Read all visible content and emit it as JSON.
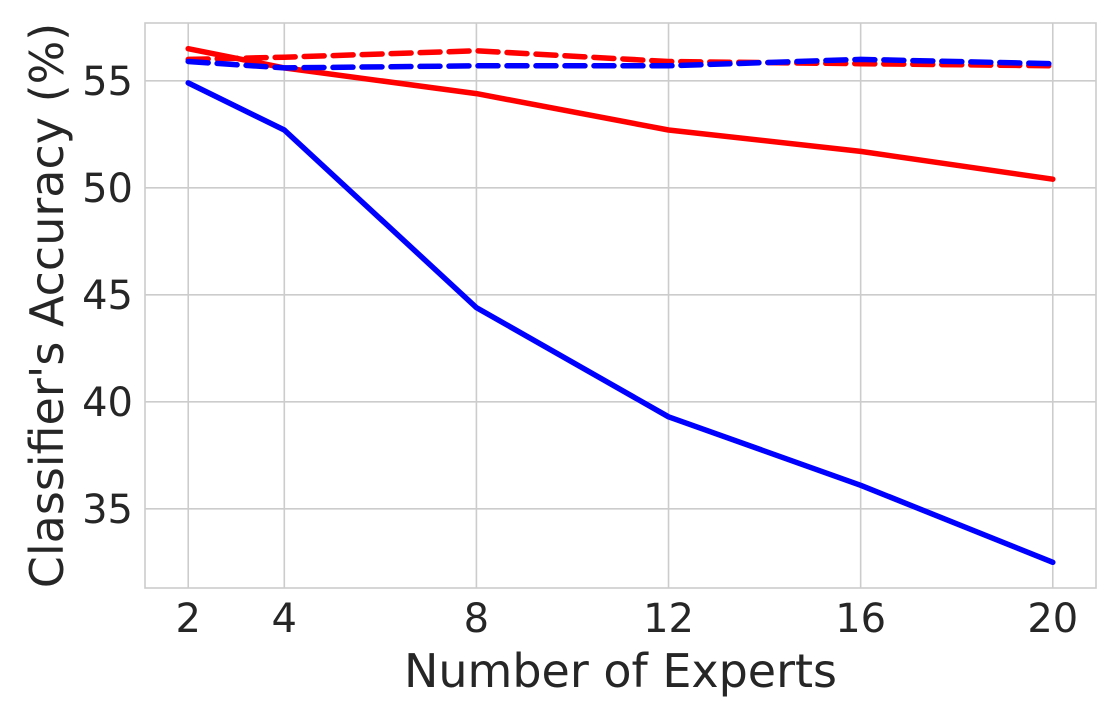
{
  "chart_data": {
    "type": "line",
    "title": "",
    "xlabel": "Number of Experts",
    "ylabel": "Classifier's Accuracy (%)",
    "x": [
      2,
      4,
      8,
      12,
      16,
      20
    ],
    "xlim": [
      1.1,
      20.9
    ],
    "ylim": [
      31.3,
      57.7
    ],
    "xticks": [
      2,
      4,
      8,
      12,
      16,
      20
    ],
    "yticks": [
      35,
      40,
      45,
      50,
      55
    ],
    "grid": true,
    "series": [
      {
        "color": "#ff0000",
        "dash": "solid",
        "values": [
          56.5,
          55.6,
          54.4,
          52.7,
          51.7,
          50.4
        ]
      },
      {
        "color": "#ff0000",
        "dash": "dashed",
        "values": [
          56.0,
          56.1,
          56.4,
          55.9,
          55.8,
          55.7
        ]
      },
      {
        "color": "#0000ff",
        "dash": "solid",
        "values": [
          54.9,
          52.7,
          44.4,
          39.3,
          36.1,
          32.5
        ]
      },
      {
        "color": "#0000ff",
        "dash": "dashed",
        "values": [
          55.9,
          55.6,
          55.7,
          55.7,
          56.0,
          55.8
        ]
      }
    ]
  }
}
